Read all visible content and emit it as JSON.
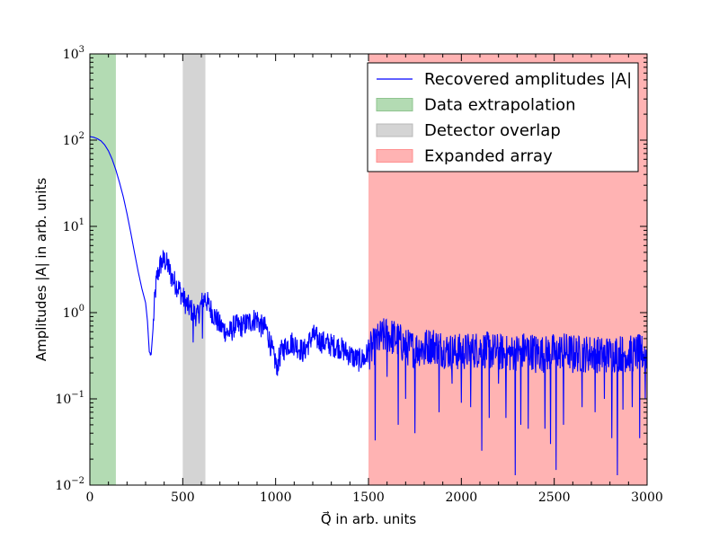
{
  "chart_data": {
    "type": "line",
    "xlabel": "Q⃗ in arb. units",
    "ylabel": "Amplitudes |A| in arb. units",
    "x_scale": "linear",
    "y_scale": "log",
    "xlim": [
      0,
      3000
    ],
    "ylim": [
      0.01,
      1000
    ],
    "x_ticks": [
      0,
      500,
      1000,
      1500,
      2000,
      2500,
      3000
    ],
    "x_tick_labels": [
      "0",
      "500",
      "1000",
      "1500",
      "2000",
      "2500",
      "3000"
    ],
    "y_ticks": [
      0.01,
      0.1,
      1,
      10,
      100,
      1000
    ],
    "y_tick_labels": [
      {
        "base": "10",
        "exp": "−2"
      },
      {
        "base": "10",
        "exp": "−1"
      },
      {
        "base": "10",
        "exp": "0"
      },
      {
        "base": "10",
        "exp": "1"
      },
      {
        "base": "10",
        "exp": "2"
      },
      {
        "base": "10",
        "exp": "3"
      }
    ],
    "grid": false,
    "legend_position": "top-right",
    "regions": [
      {
        "name": "Data extrapolation",
        "x_start": 0,
        "x_end": 140,
        "color": "#b3dbb3"
      },
      {
        "name": "Detector overlap",
        "x_start": 500,
        "x_end": 622,
        "color": "#d4d4d4"
      },
      {
        "name": "Expanded array",
        "x_start": 1500,
        "x_end": 3000,
        "color": "#ffb3b3"
      }
    ],
    "series": [
      {
        "name": "Recovered amplitudes |A|",
        "color": "#0000ff",
        "points": [
          [
            0,
            110
          ],
          [
            20,
            108
          ],
          [
            40,
            104
          ],
          [
            60,
            98
          ],
          [
            80,
            88
          ],
          [
            100,
            75
          ],
          [
            120,
            60
          ],
          [
            140,
            45
          ],
          [
            160,
            32
          ],
          [
            180,
            22
          ],
          [
            200,
            14
          ],
          [
            220,
            8.5
          ],
          [
            240,
            5
          ],
          [
            260,
            3
          ],
          [
            280,
            1.9
          ],
          [
            300,
            1.3
          ],
          [
            310,
            0.8
          ],
          [
            320,
            0.35
          ],
          [
            330,
            0.33
          ],
          [
            340,
            0.65
          ],
          [
            350,
            1.5
          ],
          [
            360,
            2.5
          ],
          [
            380,
            3.6
          ],
          [
            400,
            4.1
          ],
          [
            420,
            3.5
          ],
          [
            440,
            2.6
          ],
          [
            460,
            2.2
          ],
          [
            480,
            1.9
          ],
          [
            500,
            1.5
          ],
          [
            520,
            1.25
          ],
          [
            540,
            1.1
          ],
          [
            560,
            1.0
          ],
          [
            580,
            0.9
          ],
          [
            600,
            1.25
          ],
          [
            620,
            1.5
          ],
          [
            640,
            1.2
          ],
          [
            660,
            1.0
          ],
          [
            680,
            0.85
          ],
          [
            700,
            0.7
          ],
          [
            720,
            0.65
          ],
          [
            740,
            0.58
          ],
          [
            760,
            0.6
          ],
          [
            780,
            0.72
          ],
          [
            800,
            0.68
          ],
          [
            830,
            0.72
          ],
          [
            860,
            0.78
          ],
          [
            880,
            0.82
          ],
          [
            900,
            0.85
          ],
          [
            920,
            0.7
          ],
          [
            950,
            0.65
          ],
          [
            970,
            0.45
          ],
          [
            990,
            0.3
          ],
          [
            1010,
            0.25
          ],
          [
            1030,
            0.35
          ],
          [
            1060,
            0.42
          ],
          [
            1090,
            0.45
          ],
          [
            1120,
            0.4
          ],
          [
            1150,
            0.35
          ],
          [
            1180,
            0.45
          ],
          [
            1200,
            0.55
          ],
          [
            1230,
            0.48
          ],
          [
            1260,
            0.45
          ],
          [
            1300,
            0.42
          ],
          [
            1340,
            0.4
          ],
          [
            1380,
            0.35
          ],
          [
            1420,
            0.3
          ],
          [
            1450,
            0.28
          ],
          [
            1480,
            0.3
          ],
          [
            1500,
            0.35
          ],
          [
            1530,
            0.4
          ],
          [
            1560,
            0.5
          ],
          [
            1600,
            0.55
          ],
          [
            1650,
            0.5
          ],
          [
            1700,
            0.4
          ],
          [
            1750,
            0.38
          ],
          [
            1800,
            0.4
          ],
          [
            1850,
            0.42
          ],
          [
            1900,
            0.38
          ],
          [
            1950,
            0.35
          ],
          [
            2000,
            0.35
          ],
          [
            2050,
            0.36
          ],
          [
            2100,
            0.38
          ],
          [
            2150,
            0.36
          ],
          [
            2200,
            0.35
          ],
          [
            2250,
            0.33
          ],
          [
            2300,
            0.35
          ],
          [
            2350,
            0.37
          ],
          [
            2400,
            0.35
          ],
          [
            2450,
            0.33
          ],
          [
            2500,
            0.35
          ],
          [
            2550,
            0.36
          ],
          [
            2600,
            0.34
          ],
          [
            2650,
            0.33
          ],
          [
            2700,
            0.34
          ],
          [
            2750,
            0.32
          ],
          [
            2800,
            0.33
          ],
          [
            2850,
            0.34
          ],
          [
            2900,
            0.33
          ],
          [
            2950,
            0.34
          ],
          [
            3000,
            0.34
          ]
        ],
        "dips": [
          [
            325,
            0.32
          ],
          [
            555,
            0.45
          ],
          [
            605,
            0.5
          ],
          [
            1005,
            0.19
          ],
          [
            1480,
            0.25
          ],
          [
            1535,
            0.033
          ],
          [
            1600,
            0.18
          ],
          [
            1660,
            0.05
          ],
          [
            1700,
            0.1
          ],
          [
            1750,
            0.04
          ],
          [
            1800,
            0.25
          ],
          [
            1880,
            0.07
          ],
          [
            1950,
            0.15
          ],
          [
            2000,
            0.09
          ],
          [
            2050,
            0.08
          ],
          [
            2110,
            0.025
          ],
          [
            2150,
            0.06
          ],
          [
            2200,
            0.15
          ],
          [
            2240,
            0.06
          ],
          [
            2290,
            0.013
          ],
          [
            2320,
            0.05
          ],
          [
            2360,
            0.045
          ],
          [
            2400,
            0.2
          ],
          [
            2450,
            0.045
          ],
          [
            2480,
            0.03
          ],
          [
            2510,
            0.015
          ],
          [
            2550,
            0.05
          ],
          [
            2600,
            0.2
          ],
          [
            2650,
            0.08
          ],
          [
            2720,
            0.07
          ],
          [
            2770,
            0.1
          ],
          [
            2810,
            0.035
          ],
          [
            2840,
            0.013
          ],
          [
            2870,
            0.075
          ],
          [
            2920,
            0.08
          ],
          [
            2960,
            0.035
          ],
          [
            2990,
            0.1
          ]
        ]
      }
    ],
    "legend": {
      "entries": [
        {
          "label": "Recovered amplitudes |A|",
          "kind": "line",
          "color": "#0000ff"
        },
        {
          "label": "Data extrapolation",
          "kind": "patch",
          "color": "#b3dbb3",
          "edge": "#8fc48f"
        },
        {
          "label": "Detector overlap",
          "kind": "patch",
          "color": "#d4d4d4",
          "edge": "#b8b8b8"
        },
        {
          "label": "Expanded array",
          "kind": "patch",
          "color": "#ffb3b3",
          "edge": "#ff8f8f"
        }
      ]
    }
  }
}
